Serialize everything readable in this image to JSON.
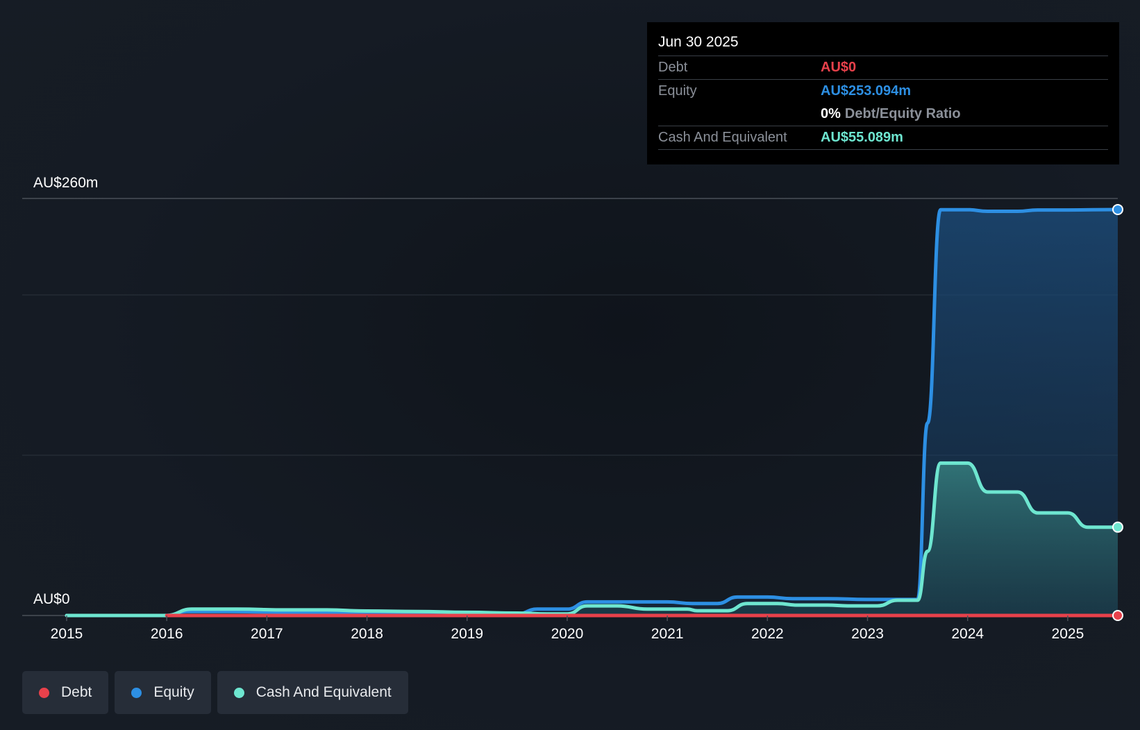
{
  "chart_data": {
    "type": "area",
    "title": "",
    "y_axis": {
      "labels": [
        "AU$260m",
        "AU$0"
      ],
      "ylim": [
        0,
        260
      ],
      "unit": "AU$m"
    },
    "x_axis": {
      "tick_labels": [
        "2015",
        "2016",
        "2017",
        "2018",
        "2019",
        "2020",
        "2021",
        "2022",
        "2023",
        "2024",
        "2025"
      ]
    },
    "series": [
      {
        "name": "Equity",
        "color": "#2d8fe3",
        "points": [
          [
            2015.0,
            0
          ],
          [
            2015.99,
            0
          ],
          [
            2016.2,
            2.5
          ],
          [
            2016.6,
            2.5
          ],
          [
            2017.0,
            2.2
          ],
          [
            2017.5,
            2.0
          ],
          [
            2018.0,
            1.7
          ],
          [
            2018.5,
            1.5
          ],
          [
            2019.0,
            1.2
          ],
          [
            2019.5,
            1.0
          ],
          [
            2019.7,
            4.0
          ],
          [
            2020.0,
            4.0
          ],
          [
            2020.2,
            8.5
          ],
          [
            2020.5,
            8.5
          ],
          [
            2021.0,
            8.5
          ],
          [
            2021.25,
            7.5
          ],
          [
            2021.5,
            7.5
          ],
          [
            2021.7,
            11.5
          ],
          [
            2022.0,
            11.5
          ],
          [
            2022.25,
            10.5
          ],
          [
            2022.6,
            10.5
          ],
          [
            2023.0,
            10.0
          ],
          [
            2023.5,
            10.0
          ],
          [
            2023.6,
            120.0
          ],
          [
            2023.73,
            253.0
          ],
          [
            2024.0,
            253.0
          ],
          [
            2024.2,
            252.0
          ],
          [
            2024.5,
            252.0
          ],
          [
            2024.7,
            252.8
          ],
          [
            2025.0,
            252.8
          ],
          [
            2025.5,
            253.094
          ]
        ]
      },
      {
        "name": "Cash And Equivalent",
        "color": "#6ee6d0",
        "points": [
          [
            2015.0,
            0
          ],
          [
            2015.99,
            0
          ],
          [
            2016.25,
            4.0
          ],
          [
            2016.7,
            4.0
          ],
          [
            2017.2,
            3.5
          ],
          [
            2017.6,
            3.5
          ],
          [
            2018.0,
            2.8
          ],
          [
            2018.5,
            2.5
          ],
          [
            2019.0,
            2.0
          ],
          [
            2019.5,
            1.5
          ],
          [
            2019.8,
            1.0
          ],
          [
            2020.0,
            1.0
          ],
          [
            2020.2,
            6.0
          ],
          [
            2020.5,
            6.0
          ],
          [
            2020.8,
            4.0
          ],
          [
            2021.2,
            4.0
          ],
          [
            2021.3,
            3.0
          ],
          [
            2021.6,
            3.0
          ],
          [
            2021.8,
            7.5
          ],
          [
            2022.1,
            7.5
          ],
          [
            2022.3,
            6.5
          ],
          [
            2022.6,
            6.5
          ],
          [
            2022.8,
            6.0
          ],
          [
            2023.1,
            6.0
          ],
          [
            2023.3,
            9.5
          ],
          [
            2023.5,
            9.5
          ],
          [
            2023.6,
            40.0
          ],
          [
            2023.73,
            95.0
          ],
          [
            2024.0,
            95.0
          ],
          [
            2024.2,
            77.0
          ],
          [
            2024.5,
            77.0
          ],
          [
            2024.7,
            64.0
          ],
          [
            2025.0,
            64.0
          ],
          [
            2025.2,
            55.089
          ],
          [
            2025.5,
            55.089
          ]
        ]
      },
      {
        "name": "Debt",
        "color": "#e8414b",
        "points": [
          [
            2016.0,
            0
          ],
          [
            2025.5,
            0
          ]
        ]
      }
    ],
    "legend": {
      "placement": "bottom-left",
      "items": [
        {
          "name": "Debt",
          "color": "#e8414b"
        },
        {
          "name": "Equity",
          "color": "#2d8fe3"
        },
        {
          "name": "Cash And Equivalent",
          "color": "#6ee6d0"
        }
      ]
    }
  },
  "tooltip": {
    "date": "Jun 30 2025",
    "debt_label": "Debt",
    "debt_value": "AU$0",
    "debt_color": "#e8414b",
    "equity_label": "Equity",
    "equity_value": "AU$253.094m",
    "equity_color": "#2d8fe3",
    "ratio_value": "0%",
    "ratio_label": "Debt/Equity Ratio",
    "cash_label": "Cash And Equivalent",
    "cash_value": "AU$55.089m",
    "cash_color": "#6ee6d0"
  }
}
